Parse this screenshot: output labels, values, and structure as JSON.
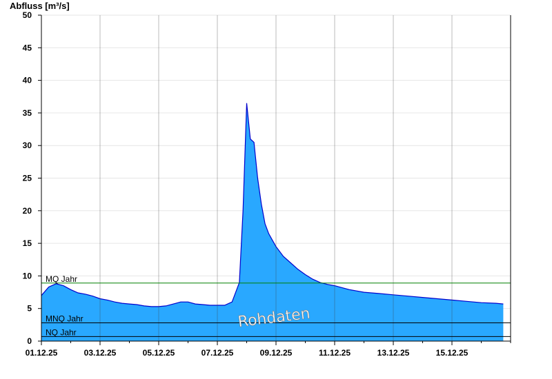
{
  "chart_data": {
    "type": "area",
    "ylabel": "Abfluss [m³/s]",
    "xlabel": "",
    "ylim": [
      0,
      50
    ],
    "yticks": [
      "0",
      "5",
      "10",
      "15",
      "20",
      "25",
      "30",
      "35",
      "40",
      "45",
      "50"
    ],
    "xlim": [
      "01.12.25",
      "17.12.25"
    ],
    "xticks": [
      "01.12.25",
      "03.12.25",
      "05.12.25",
      "07.12.25",
      "09.12.25",
      "11.12.25",
      "13.12.25",
      "15.12.25"
    ],
    "grid": true,
    "colors": {
      "fill": "#29a8ff",
      "line": "#0000cc",
      "mq": "#008000",
      "mnq": "#000000",
      "nq": "#000000"
    },
    "reference_lines": [
      {
        "name": "MQ Jahr",
        "value": 8.9
      },
      {
        "name": "MNQ Jahr",
        "value": 2.8
      },
      {
        "name": "NQ Jahr",
        "value": 0.7
      }
    ],
    "watermark": "Rohdaten",
    "series": [
      {
        "x": [
          "01.12.25 00:00",
          "01.12.25 06:00",
          "01.12.25 12:00",
          "01.12.25 18:00",
          "02.12.25 00:00",
          "02.12.25 06:00",
          "02.12.25 12:00",
          "02.12.25 18:00",
          "03.12.25 00:00",
          "03.12.25 06:00",
          "03.12.25 12:00",
          "03.12.25 18:00",
          "04.12.25 00:00",
          "04.12.25 06:00",
          "04.12.25 12:00",
          "04.12.25 18:00",
          "05.12.25 00:00",
          "05.12.25 06:00",
          "05.12.25 12:00",
          "05.12.25 18:00",
          "06.12.25 00:00",
          "06.12.25 06:00",
          "06.12.25 12:00",
          "06.12.25 18:00",
          "07.12.25 00:00",
          "07.12.25 06:00",
          "07.12.25 12:00",
          "07.12.25 18:00",
          "07.12.25 21:00",
          "08.12.25 00:00",
          "08.12.25 03:00",
          "08.12.25 06:00",
          "08.12.25 09:00",
          "08.12.25 12:00",
          "08.12.25 15:00",
          "08.12.25 18:00",
          "08.12.25 21:00",
          "09.12.25 00:00",
          "09.12.25 06:00",
          "09.12.25 12:00",
          "09.12.25 18:00",
          "10.12.25 00:00",
          "10.12.25 06:00",
          "10.12.25 12:00",
          "10.12.25 18:00",
          "11.12.25 00:00",
          "11.12.25 06:00",
          "11.12.25 12:00",
          "11.12.25 18:00",
          "12.12.25 00:00",
          "12.12.25 12:00",
          "13.12.25 00:00",
          "13.12.25 12:00",
          "14.12.25 00:00",
          "14.12.25 12:00",
          "15.12.25 00:00",
          "15.12.25 12:00",
          "16.12.25 00:00",
          "16.12.25 12:00",
          "16.12.25 18:00"
        ],
        "values": [
          7.0,
          8.3,
          8.8,
          8.5,
          7.9,
          7.4,
          7.2,
          6.9,
          6.5,
          6.3,
          6.0,
          5.8,
          5.7,
          5.6,
          5.4,
          5.3,
          5.3,
          5.4,
          5.7,
          6.0,
          6.0,
          5.7,
          5.6,
          5.5,
          5.5,
          5.5,
          6.0,
          9.0,
          20.0,
          36.5,
          31.0,
          30.5,
          25.0,
          21.0,
          18.0,
          16.5,
          15.5,
          14.5,
          13.0,
          12.0,
          11.0,
          10.2,
          9.5,
          9.0,
          8.7,
          8.5,
          8.2,
          7.9,
          7.7,
          7.5,
          7.3,
          7.1,
          6.9,
          6.7,
          6.5,
          6.3,
          6.1,
          5.9,
          5.8,
          5.7
        ]
      }
    ]
  }
}
